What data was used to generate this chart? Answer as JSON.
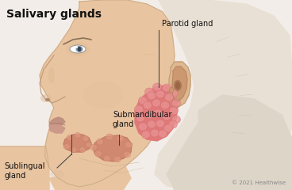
{
  "title": "Salivary glands",
  "background_color": "#f2ede8",
  "labels": {
    "parotid": "Parotid gland",
    "sublingual": "Sublingual\ngland",
    "submandibular": "Submandibular\ngland"
  },
  "copyright": "© 2021 Healthwise",
  "face_skin_color": "#e8c4a0",
  "face_edge_color": "#c8a882",
  "back_head_color": "#ddd0c0",
  "neck_back_color": "#e0cfc0",
  "gland_parotid_base": "#d96060",
  "gland_parotid_bump": "#e87878",
  "gland_small_color": "#cc8870",
  "gland_small_bump": "#dd9980",
  "ear_color": "#daa888",
  "ear_inner_color": "#c09070",
  "line_color": "#444444",
  "text_color": "#111111",
  "title_fontsize": 10,
  "label_fontsize": 7,
  "copyright_fontsize": 5
}
